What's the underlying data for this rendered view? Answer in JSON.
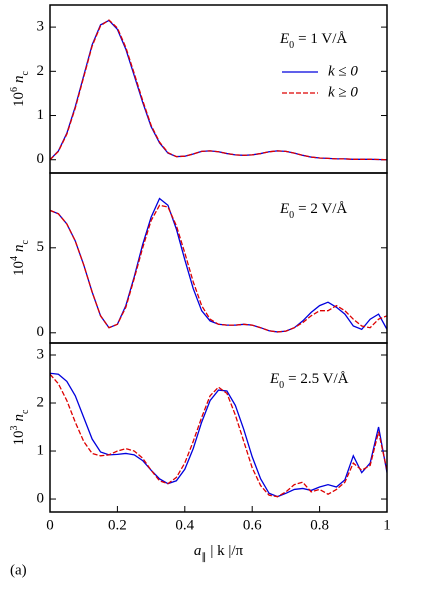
{
  "label": "(a)",
  "chart_data": [
    {
      "type": "line",
      "ylabel": [
        "10",
        "6",
        "n",
        "c"
      ],
      "annotation": [
        "E",
        "0",
        "= 1 V/Å"
      ],
      "legend": true,
      "xlim": [
        0,
        1
      ],
      "ylim": [
        -0.3,
        3.5
      ],
      "yticks": [
        0,
        1,
        2,
        3
      ],
      "x": [
        0,
        0.025,
        0.05,
        0.075,
        0.1,
        0.125,
        0.15,
        0.175,
        0.2,
        0.225,
        0.25,
        0.275,
        0.3,
        0.325,
        0.35,
        0.375,
        0.4,
        0.425,
        0.45,
        0.475,
        0.5,
        0.525,
        0.55,
        0.575,
        0.6,
        0.625,
        0.65,
        0.675,
        0.7,
        0.725,
        0.75,
        0.775,
        0.8,
        0.825,
        0.85,
        0.875,
        0.9,
        0.925,
        0.95,
        0.975,
        1
      ],
      "series": [
        {
          "name": "k ≤ 0",
          "color": "#0000dd",
          "dash": false,
          "values": [
            0,
            0.2,
            0.6,
            1.2,
            1.9,
            2.6,
            3.05,
            3.15,
            2.95,
            2.5,
            1.9,
            1.3,
            0.75,
            0.38,
            0.15,
            0.07,
            0.08,
            0.13,
            0.19,
            0.2,
            0.18,
            0.14,
            0.11,
            0.1,
            0.11,
            0.14,
            0.18,
            0.2,
            0.19,
            0.15,
            0.1,
            0.06,
            0.04,
            0.03,
            0.02,
            0.02,
            0.01,
            0.01,
            0.01,
            0.005,
            0
          ]
        },
        {
          "name": "k ≥ 0",
          "color": "#dd0000",
          "dash": true,
          "values": [
            0,
            0.19,
            0.58,
            1.17,
            1.87,
            2.57,
            3.03,
            3.16,
            2.98,
            2.54,
            1.95,
            1.34,
            0.78,
            0.4,
            0.16,
            0.07,
            0.08,
            0.13,
            0.19,
            0.2,
            0.18,
            0.14,
            0.11,
            0.1,
            0.11,
            0.14,
            0.18,
            0.2,
            0.19,
            0.15,
            0.1,
            0.06,
            0.04,
            0.03,
            0.02,
            0.02,
            0.01,
            0.01,
            0.01,
            0.005,
            0
          ]
        }
      ]
    },
    {
      "type": "line",
      "ylabel": [
        "10",
        "4",
        "n",
        "c"
      ],
      "annotation": [
        "E",
        "0",
        "= 2 V/Å"
      ],
      "xlim": [
        0,
        1
      ],
      "ylim": [
        -0.6,
        9.4
      ],
      "yticks": [
        0,
        5
      ],
      "x": [
        0,
        0.025,
        0.05,
        0.075,
        0.1,
        0.125,
        0.15,
        0.175,
        0.2,
        0.225,
        0.25,
        0.275,
        0.3,
        0.325,
        0.35,
        0.375,
        0.4,
        0.425,
        0.45,
        0.475,
        0.5,
        0.525,
        0.55,
        0.575,
        0.6,
        0.625,
        0.65,
        0.675,
        0.7,
        0.725,
        0.75,
        0.775,
        0.8,
        0.825,
        0.85,
        0.875,
        0.9,
        0.925,
        0.95,
        0.975,
        1
      ],
      "series": [
        {
          "color": "#0000dd",
          "dash": false,
          "values": [
            7.2,
            7.0,
            6.4,
            5.4,
            4.0,
            2.4,
            1.0,
            0.3,
            0.5,
            1.6,
            3.3,
            5.2,
            6.8,
            7.9,
            7.5,
            6.1,
            4.3,
            2.6,
            1.3,
            0.7,
            0.5,
            0.45,
            0.45,
            0.5,
            0.45,
            0.3,
            0.12,
            0.05,
            0.1,
            0.3,
            0.7,
            1.2,
            1.6,
            1.8,
            1.5,
            1.1,
            0.4,
            0.2,
            0.8,
            1.1,
            0.2
          ]
        },
        {
          "color": "#dd0000",
          "dash": true,
          "values": [
            7.2,
            7.0,
            6.4,
            5.4,
            4.0,
            2.4,
            1.0,
            0.3,
            0.5,
            1.5,
            3.2,
            5.0,
            6.6,
            7.5,
            7.4,
            6.3,
            4.7,
            3.0,
            1.6,
            0.8,
            0.5,
            0.45,
            0.45,
            0.5,
            0.45,
            0.3,
            0.12,
            0.05,
            0.1,
            0.3,
            0.6,
            1.0,
            1.3,
            1.3,
            1.6,
            1.3,
            0.8,
            0.4,
            0.3,
            0.8,
            1.0
          ]
        }
      ]
    },
    {
      "type": "line",
      "ylabel": [
        "10",
        "3",
        "n",
        "c"
      ],
      "annotation": [
        "E",
        "0",
        "= 2.5 V/Å"
      ],
      "xlabel": [
        "a",
        "∥",
        "| k |/π"
      ],
      "xlim": [
        0,
        1
      ],
      "xticks": [
        0,
        0.2,
        0.4,
        0.6,
        0.8,
        1
      ],
      "ylim": [
        -0.27,
        3.25
      ],
      "yticks": [
        0,
        1,
        2,
        3
      ],
      "x": [
        0,
        0.025,
        0.05,
        0.075,
        0.1,
        0.125,
        0.15,
        0.175,
        0.2,
        0.225,
        0.25,
        0.275,
        0.3,
        0.325,
        0.35,
        0.375,
        0.4,
        0.425,
        0.45,
        0.475,
        0.5,
        0.525,
        0.55,
        0.575,
        0.6,
        0.625,
        0.65,
        0.675,
        0.7,
        0.725,
        0.75,
        0.775,
        0.8,
        0.825,
        0.85,
        0.875,
        0.9,
        0.925,
        0.95,
        0.975,
        1
      ],
      "series": [
        {
          "color": "#0000dd",
          "dash": false,
          "values": [
            2.62,
            2.6,
            2.45,
            2.15,
            1.7,
            1.25,
            0.98,
            0.92,
            0.93,
            0.95,
            0.92,
            0.8,
            0.6,
            0.42,
            0.32,
            0.38,
            0.62,
            1.05,
            1.6,
            2.05,
            2.27,
            2.25,
            1.95,
            1.45,
            0.88,
            0.42,
            0.12,
            0.05,
            0.12,
            0.2,
            0.22,
            0.18,
            0.25,
            0.3,
            0.25,
            0.4,
            0.9,
            0.55,
            0.75,
            1.5,
            0.55
          ]
        },
        {
          "color": "#dd0000",
          "dash": true,
          "values": [
            2.6,
            2.4,
            2.05,
            1.6,
            1.2,
            0.95,
            0.9,
            0.92,
            1.0,
            1.05,
            1.0,
            0.85,
            0.6,
            0.38,
            0.32,
            0.45,
            0.75,
            1.2,
            1.7,
            2.15,
            2.33,
            2.2,
            1.75,
            1.2,
            0.65,
            0.28,
            0.08,
            0.05,
            0.15,
            0.3,
            0.35,
            0.15,
            0.2,
            0.1,
            0.2,
            0.35,
            0.75,
            0.6,
            0.7,
            1.4,
            0.6
          ]
        }
      ]
    }
  ]
}
